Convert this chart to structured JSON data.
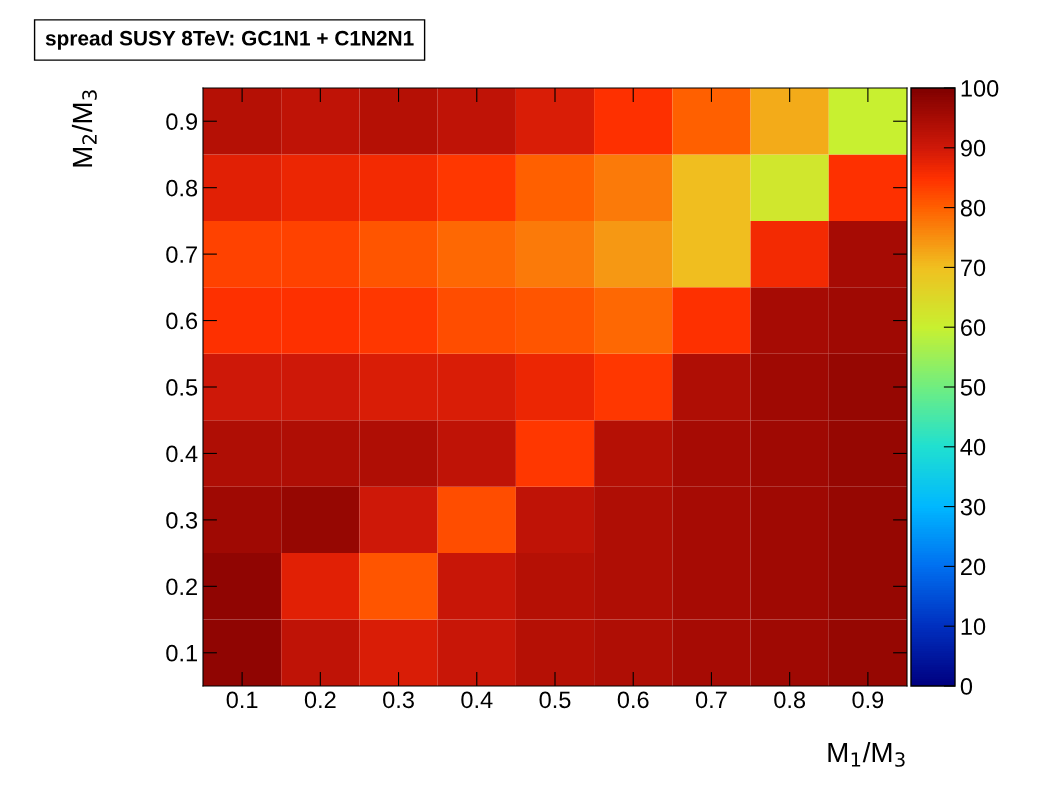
{
  "chart_data": {
    "type": "heatmap",
    "title": "spread SUSY 8TeV: GC1N1 + C1N2N1",
    "xlabel": "M$_{1}$/M$_{3}$",
    "ylabel": "M$_{2}$/M$_{3}$",
    "categories": [
      "0.1",
      "0.2",
      "0.3",
      "0.4",
      "0.5",
      "0.6",
      "0.7",
      "0.8",
      "0.9"
    ],
    "y_categories": [
      "0.9",
      "0.8",
      "0.7",
      "0.6",
      "0.5",
      "0.4",
      "0.3",
      "0.2",
      "0.1"
    ],
    "cells": [
      [
        93,
        92,
        93,
        92,
        89,
        85,
        80,
        72,
        60
      ],
      [
        88,
        87,
        86,
        84,
        80,
        77,
        70,
        62,
        85
      ],
      [
        83,
        83,
        81,
        79,
        77,
        74,
        70,
        86,
        95
      ],
      [
        85,
        85,
        84,
        82,
        81,
        79,
        85,
        95,
        96
      ],
      [
        90,
        90,
        89,
        89,
        87,
        84,
        94,
        96,
        97
      ],
      [
        94,
        94,
        94,
        92,
        84,
        93,
        95,
        96,
        97
      ],
      [
        96,
        97,
        90,
        82,
        92,
        94,
        95,
        96,
        97
      ],
      [
        98,
        88,
        81,
        91,
        93,
        94,
        95,
        96,
        97
      ],
      [
        98,
        92,
        89,
        91,
        93,
        94,
        95,
        96,
        97
      ]
    ],
    "clim": [
      0,
      100
    ],
    "cticks": [
      0,
      10,
      20,
      30,
      40,
      50,
      60,
      70,
      80,
      90,
      100
    ],
    "grid": false
  }
}
